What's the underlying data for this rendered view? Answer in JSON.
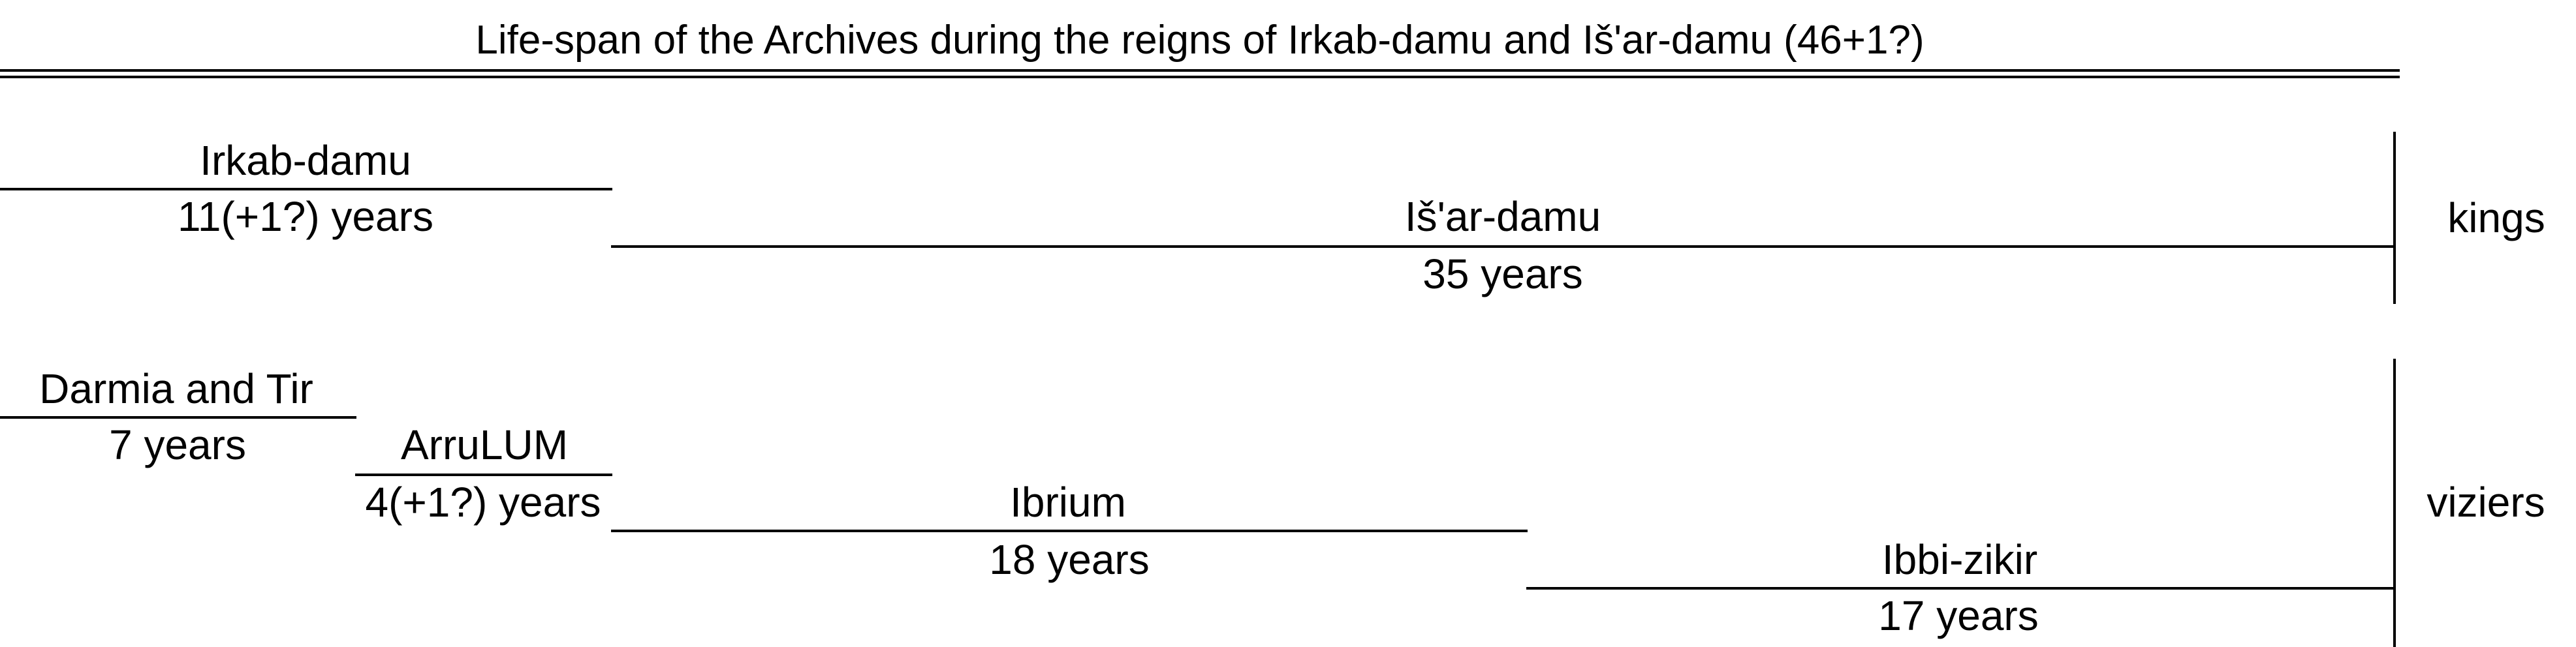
{
  "title": "Life-span of the Archives during the reigns of Irkab-damu and Iš'ar-damu (46+1?)",
  "groups": {
    "kings": "kings",
    "viziers": "viziers"
  },
  "kings": [
    {
      "name": "Irkab-damu",
      "duration": "11(+1?) years"
    },
    {
      "name": "Iš'ar-damu",
      "duration": "35 years"
    }
  ],
  "viziers": [
    {
      "name": "Darmia and Tir",
      "duration": "7 years"
    },
    {
      "name": "ArruLUM",
      "duration": "4(+1?) years"
    },
    {
      "name": "Ibrium",
      "duration": "18 years"
    },
    {
      "name": "Ibbi-zikir",
      "duration": "17 years"
    }
  ]
}
